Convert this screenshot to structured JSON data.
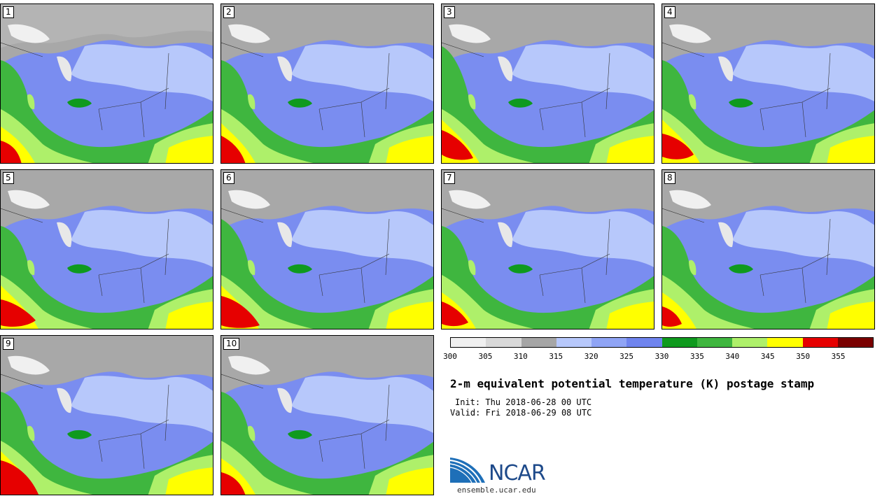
{
  "stamps": [
    "1",
    "2",
    "3",
    "4",
    "5",
    "6",
    "7",
    "8",
    "9",
    "10"
  ],
  "colorbar": {
    "ticks": [
      "300",
      "305",
      "310",
      "315",
      "320",
      "325",
      "330",
      "335",
      "340",
      "345",
      "350",
      "355"
    ],
    "colors": [
      "#f0f0f0",
      "#d9d9d9",
      "#a6a6a6",
      "#b7c8fb",
      "#8fa4f5",
      "#6f84ee",
      "#0f9a1e",
      "#3fb63f",
      "#aef06a",
      "#ffff00",
      "#e60000",
      "#7a0000"
    ]
  },
  "title": "2-m equivalent potential temperature (K) postage stamp",
  "init": "Init: Thu 2018-06-28 00 UTC",
  "valid": "Valid: Fri 2018-06-29 08 UTC",
  "logo_text": "NCAR",
  "url": "ensemble.ucar.edu"
}
